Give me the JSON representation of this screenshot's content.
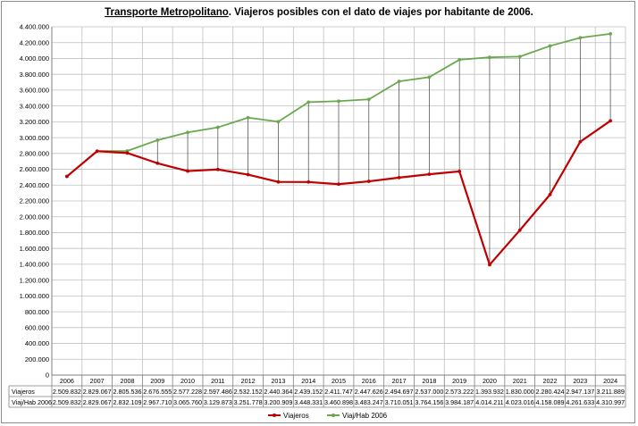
{
  "chart_data": {
    "type": "line",
    "title_part1": "Transporte Metropolitano",
    "title_part2": ".  Viajeros posibles con el dato de viajes por habitante de 2006.",
    "categories": [
      "2006",
      "2007",
      "2008",
      "2009",
      "2010",
      "2011",
      "2012",
      "2013",
      "2014",
      "2015",
      "2016",
      "2017",
      "2018",
      "2019",
      "2020",
      "2021",
      "2022",
      "2023",
      "2024"
    ],
    "ylim": [
      0,
      4400000
    ],
    "ytick_step": 200000,
    "yticks": [
      "0",
      "200.000",
      "400.000",
      "600.000",
      "800.000",
      "1.000.000",
      "1.200.000",
      "1.400.000",
      "1.600.000",
      "1.800.000",
      "2.000.000",
      "2.200.000",
      "2.400.000",
      "2.600.000",
      "2.800.000",
      "3.000.000",
      "3.200.000",
      "3.400.000",
      "3.600.000",
      "3.800.000",
      "4.000.000",
      "4.200.000",
      "4.400.000"
    ],
    "grid": true,
    "legend_position": "bottom",
    "series": [
      {
        "name": "Viajeros",
        "color": "#c00000",
        "values": [
          2509832,
          2829067,
          2805536,
          2676555,
          2577228,
          2597486,
          2532152,
          2440364,
          2439152,
          2411747,
          2447626,
          2494697,
          2537000,
          2573222,
          1393932,
          1830000,
          2280424,
          2947137,
          3211889
        ],
        "labels": [
          "2.509.832",
          "2.829.067",
          "2.805.536",
          "2.676.555",
          "2.577.228",
          "2.597.486",
          "2.532.152",
          "2.440.364",
          "2.439.152",
          "2.411.747",
          "2.447.626",
          "2.494.697",
          "2.537.000",
          "2.573.222",
          "1.393.932",
          "1.830.000",
          "2.280.424",
          "2.947.137",
          "3.211.889"
        ]
      },
      {
        "name": "Viaj/Hab 2006",
        "color": "#6aa84f",
        "values": [
          2509832,
          2829067,
          2832109,
          2967710,
          3065760,
          3129873,
          3251778,
          3200909,
          3448331,
          3460898,
          3483247,
          3710051,
          3764156,
          3984187,
          4014211,
          4023016,
          4158089,
          4261633,
          4310997
        ],
        "labels": [
          "2.509.832",
          "2.829.067",
          "2.832.109",
          "2.967.710",
          "3.065.760",
          "3.129.873",
          "3.251.778",
          "3.200.909",
          "3.448.331",
          "3.460.898",
          "3.483.247",
          "3.710.051",
          "3.764.156",
          "3.984.187",
          "4.014.211",
          "4.023.016",
          "4.158.089",
          "4.261.633",
          "4.310.997"
        ]
      }
    ]
  }
}
